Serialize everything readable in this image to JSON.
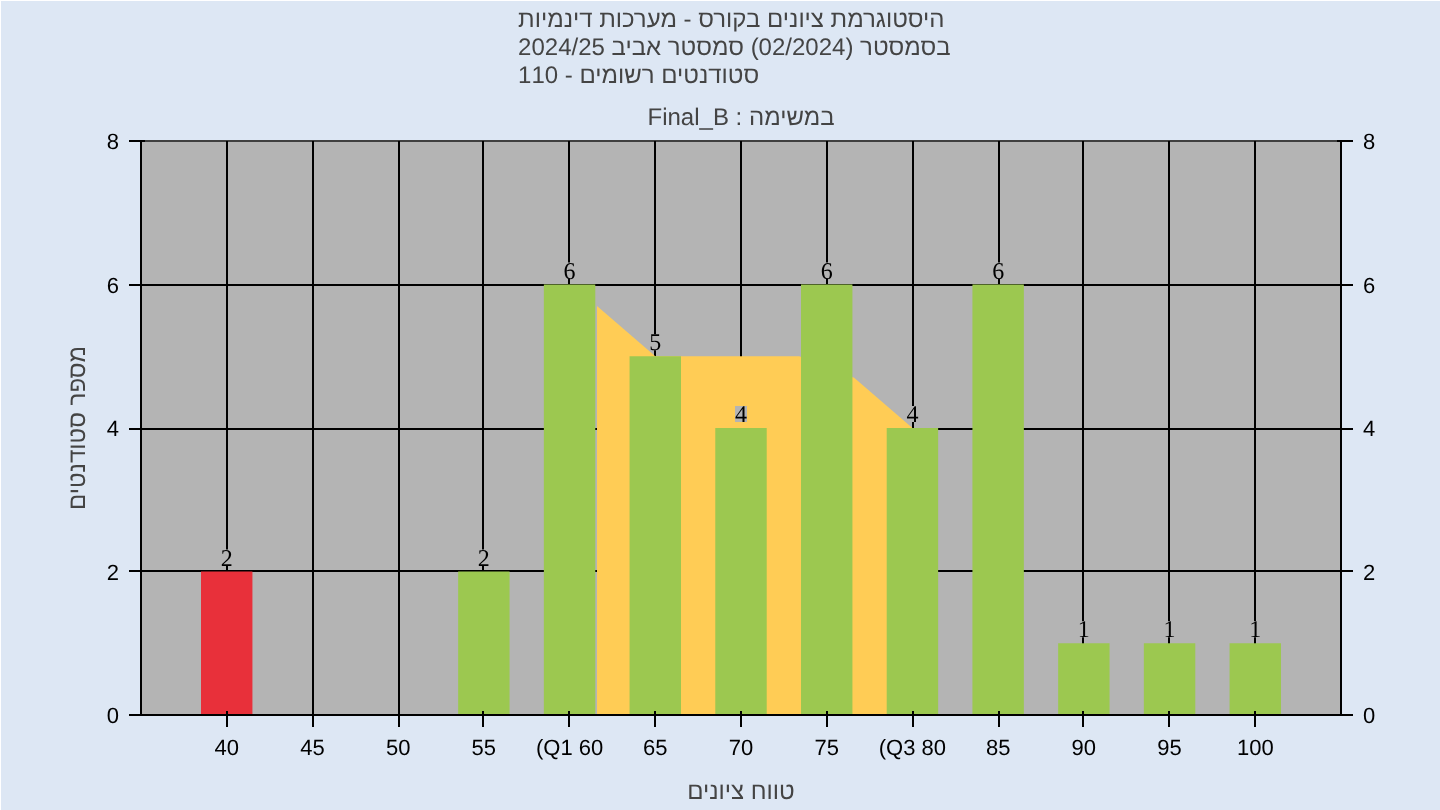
{
  "chart_data": {
    "type": "bar",
    "title": "היסטוגרמת ציונים בקורס - מערכות דינמיות\nבסמסטר  (02/2024)  סמסטר אביב 2024/25\nסטודנטים רשומים - 110",
    "xlabel": "טווח ציונים",
    "ylabel": "מספר סטודנטים",
    "x": [
      40,
      45,
      50,
      55,
      60,
      65,
      70,
      75,
      80,
      85,
      90,
      95,
      100
    ],
    "series": [
      {
        "type": "area",
        "color": "#ffcc55",
        "x": [
          61.6,
          65,
          70,
          73.4,
          76.6,
          80
        ],
        "values": [
          5.7,
          5,
          5,
          5,
          4.7,
          4
        ]
      },
      {
        "colors": [
          "#e8303a",
          "#9cc850",
          "#9cc850",
          "#9cc850",
          "#9cc850",
          "#9cc850",
          "#9cc850",
          "#9cc850",
          "#9cc850",
          "#9cc850",
          "#9cc850",
          "#9cc850",
          "#9cc850"
        ],
        "values": [
          2,
          0,
          0,
          2,
          6,
          5,
          4,
          6,
          4,
          6,
          1,
          1,
          1
        ],
        "value_labels": [
          "2",
          null,
          null,
          "2",
          "6",
          "5",
          "4",
          "6",
          "4",
          "6",
          "1",
          "1",
          "1"
        ]
      }
    ],
    "annotations": [
      "Final_B : במשימה"
    ],
    "xlim": [
      35,
      105
    ],
    "xticks": [
      40,
      45,
      50,
      55,
      {
        "value": 60,
        "label": "(Q1 60"
      },
      65,
      70,
      75,
      {
        "value": 80,
        "label": "(Q3 80"
      },
      85,
      90,
      95,
      100
    ],
    "ylim": [
      0,
      8
    ],
    "yticks": [
      0,
      2,
      4,
      6,
      8
    ],
    "y2lim": [
      0,
      8
    ],
    "y2ticks": [
      0,
      2,
      4,
      6,
      8
    ],
    "grid": true
  }
}
